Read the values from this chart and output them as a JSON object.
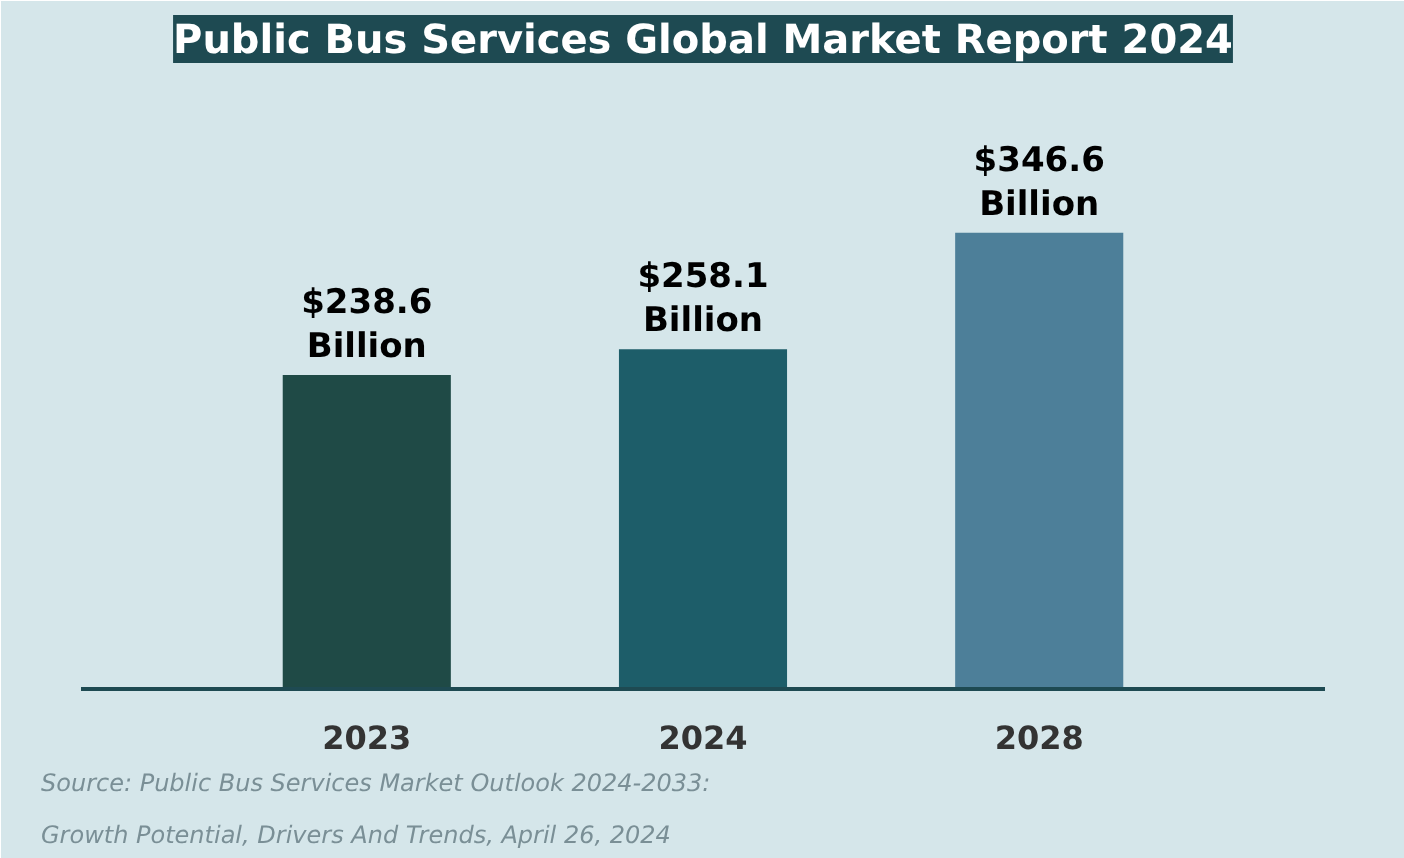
{
  "chart_data": {
    "type": "bar",
    "title": "Public Bus Services Global Market Report 2024",
    "categories": [
      "2023",
      "2024",
      "2028"
    ],
    "values": [
      238.6,
      258.1,
      346.6
    ],
    "colors": [
      "#1f4a46",
      "#1d5d69",
      "#4d7f99"
    ],
    "value_labels": [
      "$238.6\nBillion",
      "$258.1\nBillion",
      "$346.6\nBillion"
    ],
    "tick_labels": "x",
    "annotations": [
      "Source: Public Bus Services Market Outlook 2024-2033:",
      "Growth Potential, Drivers And Trends, April 26, 2024"
    ]
  }
}
